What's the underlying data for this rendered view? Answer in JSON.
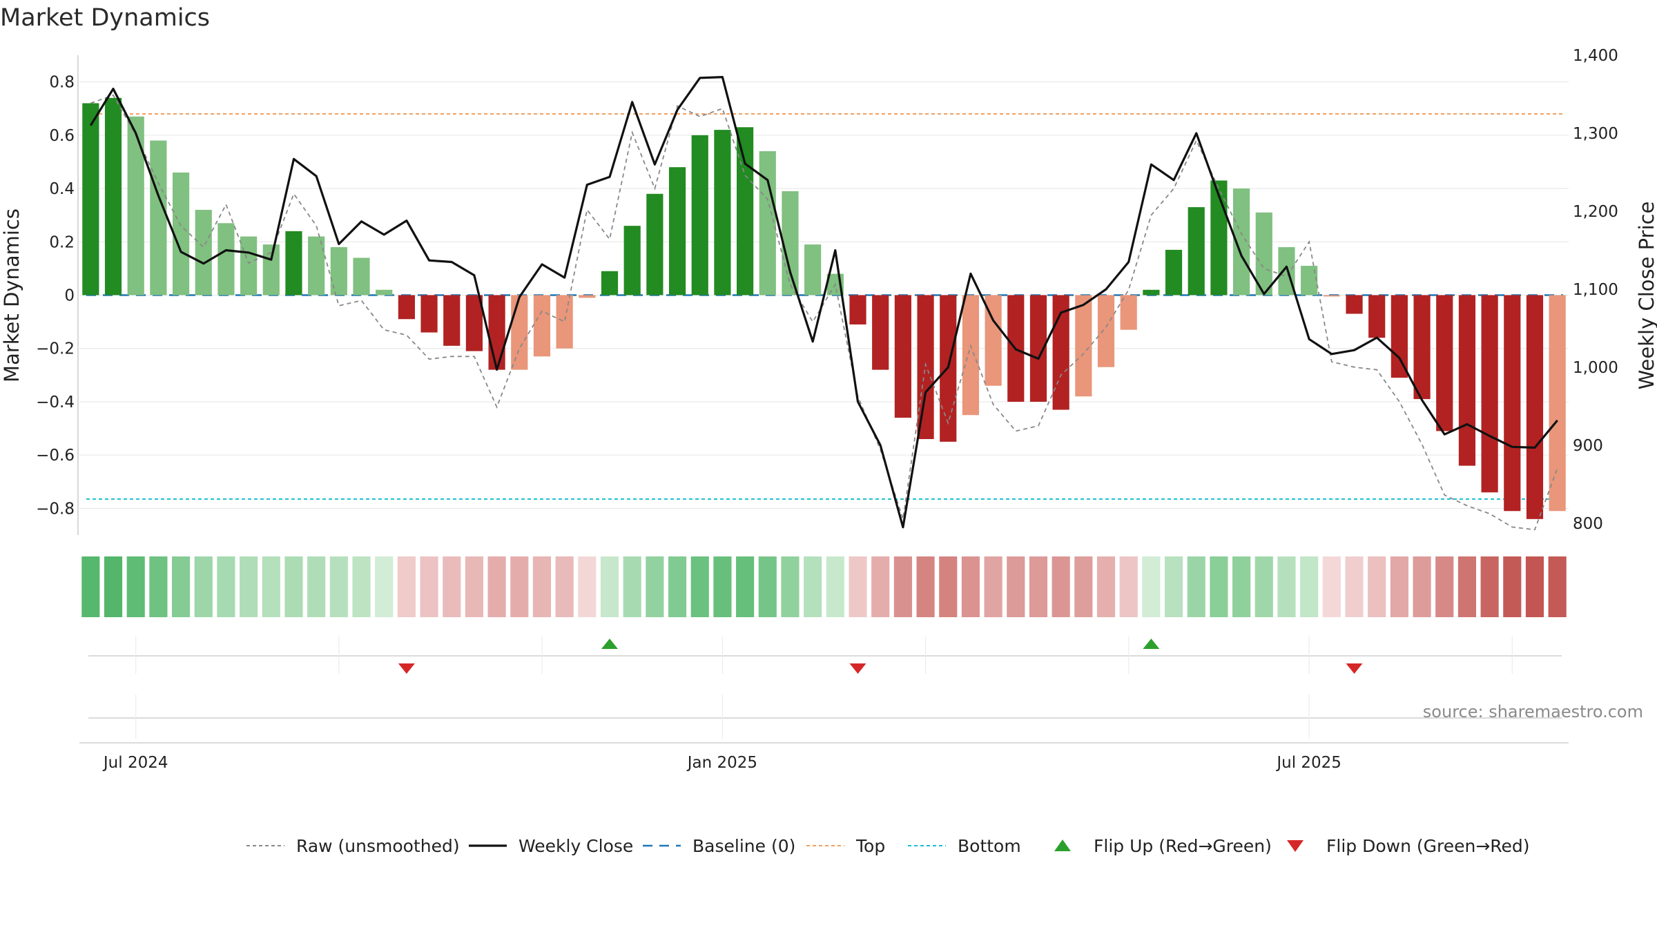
{
  "chart_data": {
    "type": "bar",
    "title": "Market Dynamics",
    "ylabel": "Market Dynamics",
    "y2label": "Weekly Close Price",
    "ylim": [
      -0.9,
      0.9
    ],
    "y2lim": [
      785,
      1400
    ],
    "yticks": [
      -0.8,
      -0.6,
      -0.4,
      -0.2,
      0,
      0.2,
      0.4,
      0.6,
      0.8
    ],
    "ytick_labels": [
      "−0.8",
      "−0.6",
      "−0.4",
      "−0.2",
      "0",
      "0.2",
      "0.4",
      "0.6",
      "0.8"
    ],
    "y2ticks": [
      800,
      900,
      1000,
      1100,
      1200,
      1300,
      1400
    ],
    "y2tick_labels": [
      "800",
      "900",
      "1,000",
      "1,100",
      "1,200",
      "1,300",
      "1,400"
    ],
    "x_ticks": [
      {
        "label": "Jul 2024",
        "week": 2
      },
      {
        "label": "Jan 2025",
        "week": 28
      },
      {
        "label": "Jul 2025",
        "week": 54
      }
    ],
    "grid": true,
    "top_level": 0.68,
    "bottom_level": -0.765,
    "baseline": 0,
    "momentum": [
      0.72,
      0.74,
      0.67,
      0.58,
      0.46,
      0.32,
      0.27,
      0.22,
      0.19,
      0.24,
      0.22,
      0.18,
      0.14,
      0.02,
      -0.09,
      -0.14,
      -0.19,
      -0.21,
      -0.28,
      -0.28,
      -0.23,
      -0.2,
      -0.01,
      0.09,
      0.26,
      0.38,
      0.48,
      0.6,
      0.62,
      0.63,
      0.54,
      0.39,
      0.19,
      0.08,
      -0.11,
      -0.28,
      -0.46,
      -0.54,
      -0.55,
      -0.45,
      -0.34,
      -0.4,
      -0.4,
      -0.43,
      -0.38,
      -0.27,
      -0.13,
      0.02,
      0.17,
      0.33,
      0.43,
      0.4,
      0.31,
      0.18,
      0.11,
      -0.005,
      -0.07,
      -0.16,
      -0.31,
      -0.39,
      -0.51,
      -0.64,
      -0.74,
      -0.81,
      -0.84,
      -0.81
    ],
    "bar_shade": [
      "strong",
      "strong",
      "light",
      "light",
      "light",
      "light",
      "light",
      "light",
      "light",
      "strong",
      "light",
      "light",
      "light",
      "light",
      "strong",
      "strong",
      "strong",
      "strong",
      "strong",
      "light",
      "light",
      "light",
      "light",
      "strong",
      "strong",
      "strong",
      "strong",
      "strong",
      "strong",
      "strong",
      "light",
      "light",
      "light",
      "light",
      "strong",
      "strong",
      "strong",
      "strong",
      "strong",
      "light",
      "light",
      "strong",
      "strong",
      "strong",
      "light",
      "light",
      "light",
      "strong",
      "strong",
      "strong",
      "strong",
      "light",
      "light",
      "light",
      "light",
      "light",
      "strong",
      "strong",
      "strong",
      "strong",
      "strong",
      "strong",
      "strong",
      "strong",
      "strong",
      "light"
    ],
    "raw": [
      0.72,
      0.75,
      0.6,
      0.42,
      0.26,
      0.18,
      0.34,
      0.12,
      0.16,
      0.38,
      0.26,
      -0.04,
      -0.02,
      -0.13,
      -0.15,
      -0.24,
      -0.23,
      -0.23,
      -0.42,
      -0.2,
      -0.06,
      -0.1,
      0.32,
      0.21,
      0.61,
      0.4,
      0.71,
      0.67,
      0.7,
      0.45,
      0.36,
      0.04,
      -0.1,
      0.04,
      -0.38,
      -0.58,
      -0.84,
      -0.26,
      -0.48,
      -0.19,
      -0.41,
      -0.51,
      -0.49,
      -0.3,
      -0.22,
      -0.12,
      0.02,
      0.3,
      0.4,
      0.58,
      0.4,
      0.23,
      0.1,
      0.07,
      0.2,
      -0.25,
      -0.27,
      -0.28,
      -0.4,
      -0.56,
      -0.75,
      -0.79,
      -0.82,
      -0.87,
      -0.88,
      -0.65
    ],
    "close": [
      1310,
      1357,
      1300,
      1220,
      1148,
      1133,
      1150,
      1147,
      1138,
      1267,
      1245,
      1158,
      1187,
      1170,
      1188,
      1137,
      1135,
      1118,
      997,
      1090,
      1132,
      1115,
      1234,
      1244,
      1340,
      1260,
      1330,
      1371,
      1372,
      1261,
      1240,
      1122,
      1033,
      1150,
      956,
      900,
      795,
      968,
      1000,
      1120,
      1060,
      1023,
      1011,
      1070,
      1080,
      1100,
      1135,
      1260,
      1240,
      1300,
      1220,
      1143,
      1094,
      1129,
      1036,
      1017,
      1022,
      1038,
      1012,
      958,
      914,
      927,
      912,
      898,
      897,
      932
    ],
    "heat_strip": [
      0.72,
      0.74,
      0.67,
      0.58,
      0.46,
      0.32,
      0.27,
      0.22,
      0.19,
      0.24,
      0.22,
      0.18,
      0.14,
      0.02,
      -0.09,
      -0.14,
      -0.19,
      -0.21,
      -0.28,
      -0.28,
      -0.23,
      -0.2,
      -0.01,
      0.09,
      0.26,
      0.38,
      0.48,
      0.6,
      0.62,
      0.63,
      0.54,
      0.39,
      0.19,
      0.08,
      -0.11,
      -0.28,
      -0.46,
      -0.54,
      -0.55,
      -0.45,
      -0.34,
      -0.4,
      -0.4,
      -0.43,
      -0.38,
      -0.27,
      -0.13,
      0.02,
      0.17,
      0.33,
      0.43,
      0.4,
      0.31,
      0.18,
      0.11,
      -0.005,
      -0.07,
      -0.16,
      -0.31,
      -0.39,
      -0.51,
      -0.64,
      -0.74,
      -0.81,
      -0.84,
      -0.81
    ],
    "flips": [
      {
        "week": 14,
        "direction": "down"
      },
      {
        "week": 23,
        "direction": "up"
      },
      {
        "week": 34,
        "direction": "down"
      },
      {
        "week": 47,
        "direction": "up"
      },
      {
        "week": 56,
        "direction": "down"
      }
    ],
    "legend": [
      {
        "label": "Raw (unsmoothed)",
        "marker": "dashed-gray"
      },
      {
        "label": "Weekly Close",
        "marker": "solid-black"
      },
      {
        "label": "Baseline (0)",
        "marker": "dashed-blue"
      },
      {
        "label": "Top",
        "marker": "dotted-orange"
      },
      {
        "label": "Bottom",
        "marker": "dotted-cyan"
      },
      {
        "label": "Flip Up (Red→Green)",
        "marker": "triangle-up-green"
      },
      {
        "label": "Flip Down (Green→Red)",
        "marker": "triangle-down-red"
      }
    ],
    "legend_position": "bottom-center",
    "source": "source: sharemaestro.com",
    "colors": {
      "strong_green": "#228b22",
      "light_green": "#80c080",
      "strong_red": "#b22222",
      "light_red": "#e9967a",
      "close_line": "#111111",
      "raw_line": "#888888",
      "baseline": "#1f77b4",
      "top": "#f0a060",
      "bottom": "#17becf",
      "flip_up": "#2ca02c",
      "flip_down": "#d62728"
    }
  }
}
